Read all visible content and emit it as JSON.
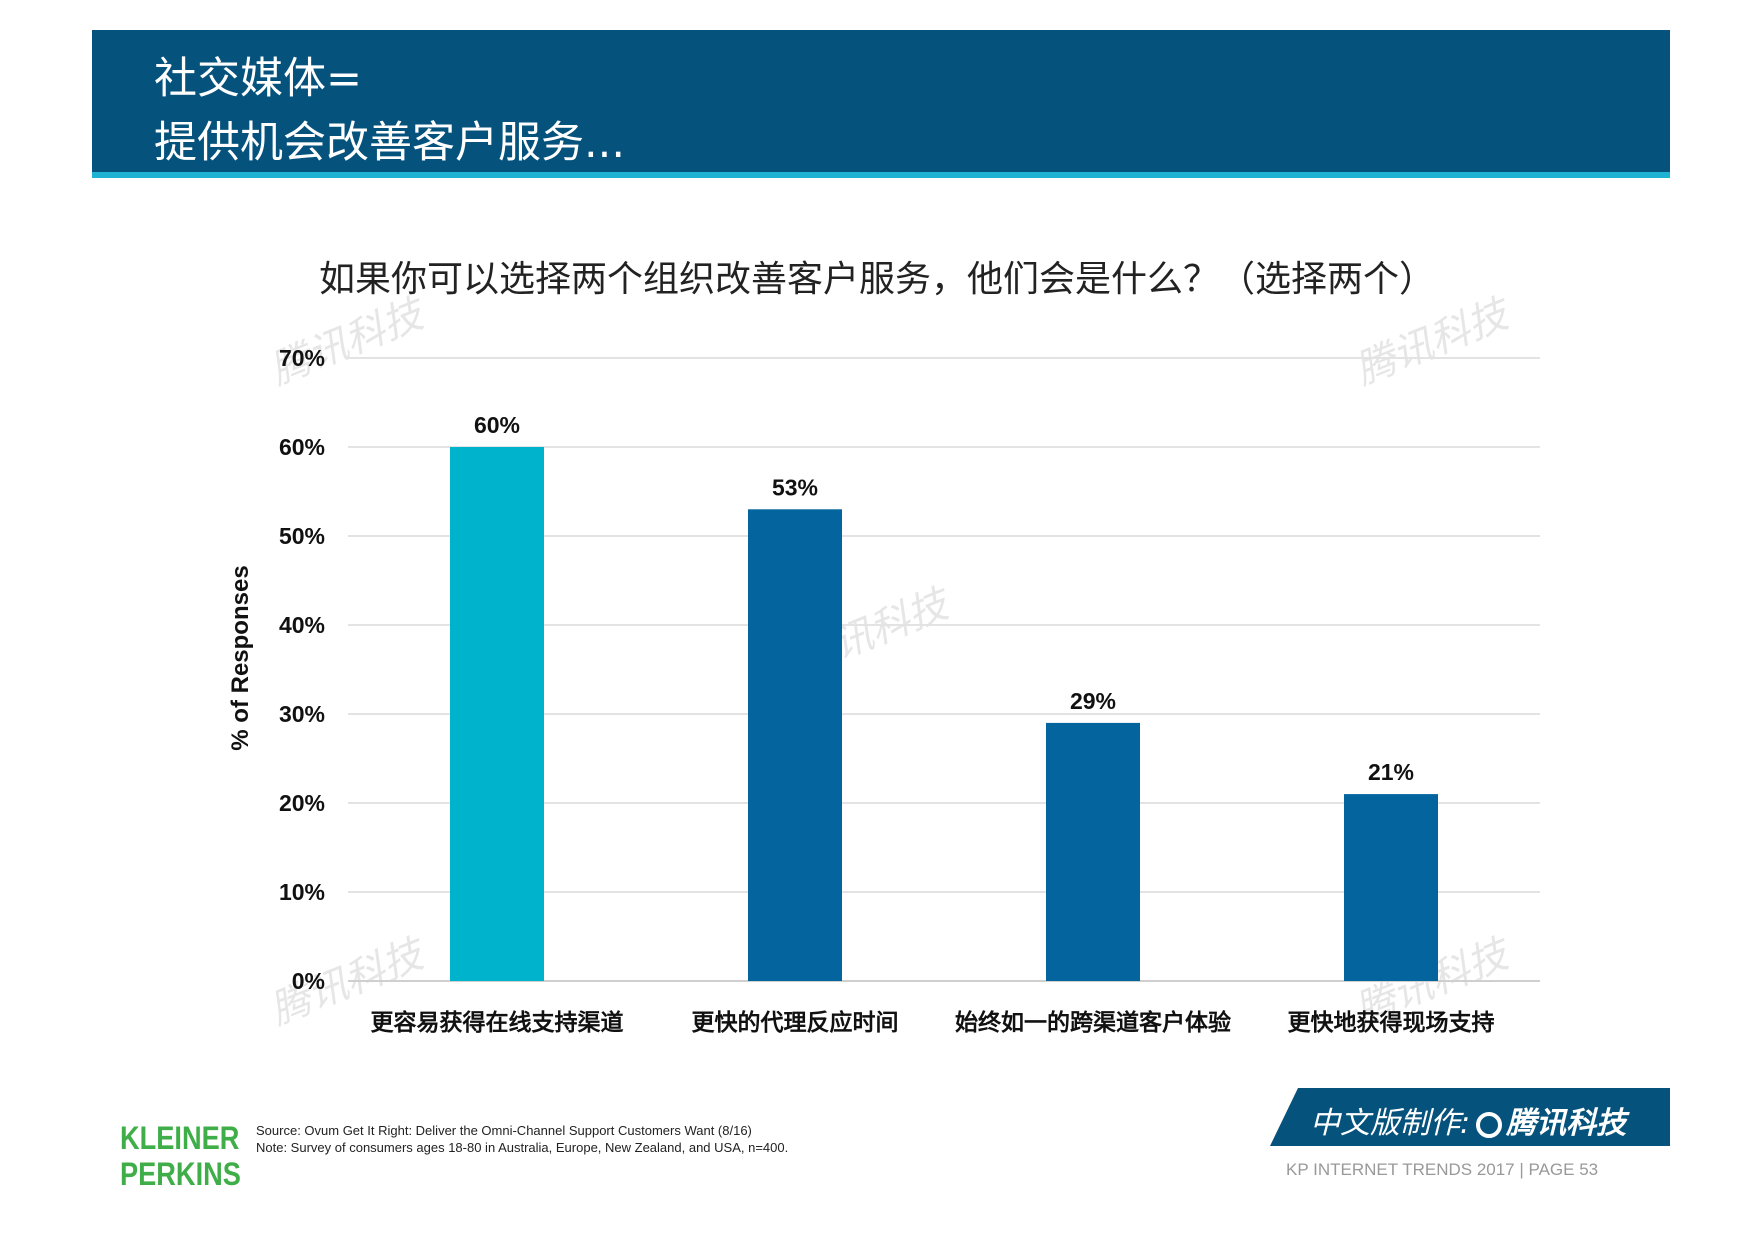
{
  "header": {
    "line1": "社交媒体=",
    "line2": "提供机会改善客户服务..."
  },
  "chart_data": {
    "type": "bar",
    "title": "如果你可以选择两个组织改善客户服务，他们会是什么？（选择两个）",
    "xlabel": "",
    "ylabel": "% of Responses",
    "ylim": [
      0,
      70
    ],
    "yticks": [
      "0%",
      "10%",
      "20%",
      "30%",
      "40%",
      "50%",
      "60%",
      "70%"
    ],
    "grid": true,
    "categories": [
      "更容易获得在线支持渠道",
      "更快的代理反应时间",
      "始终如一的跨渠道客户体验",
      "更快地获得现场支持"
    ],
    "values": [
      60,
      53,
      29,
      21
    ],
    "data_labels": [
      "60%",
      "53%",
      "29%",
      "21%"
    ],
    "colors": [
      "#00b3cc",
      "#04649e",
      "#04649e",
      "#04649e"
    ]
  },
  "watermark": "腾讯科技",
  "footer": {
    "logo_line1": "KLEINER",
    "logo_line2": "PERKINS",
    "source": "Source: Ovum Get It Right: Deliver the Omni-Channel Support Customers Want (8/16)",
    "note": "Note: Survey of consumers ages 18-80 in Australia, Europe, New Zealand, and USA, n=400.",
    "badge_prefix": "中文版制作:",
    "badge_brand": "腾讯科技",
    "page_label": "KP INTERNET TRENDS 2017  |  PAGE 53"
  }
}
